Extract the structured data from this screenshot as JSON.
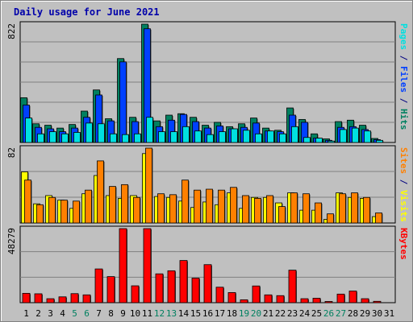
{
  "title": "Daily usage for June 2021",
  "chart_data": [
    {
      "type": "bar",
      "name": "hits-files-pages",
      "right_label_parts": [
        {
          "text": "Pages",
          "color": "#00e0e0"
        },
        {
          "text": " / ",
          "color": "#000080"
        },
        {
          "text": "Files",
          "color": "#0040ff"
        },
        {
          "text": " / ",
          "color": "#000080"
        },
        {
          "text": "Hits",
          "color": "#008060"
        }
      ],
      "ymax_label": "822",
      "ylim": [
        0,
        822
      ],
      "categories": [
        "1",
        "2",
        "3",
        "4",
        "5",
        "6",
        "7",
        "8",
        "9",
        "10",
        "11",
        "12",
        "13",
        "14",
        "15",
        "16",
        "17",
        "18",
        "19",
        "20",
        "21",
        "22",
        "23",
        "24",
        "25",
        "26",
        "27",
        "28",
        "29",
        "30",
        "31"
      ],
      "series": [
        {
          "name": "Hits",
          "color": "#008060",
          "values": [
            311,
            130,
            120,
            100,
            125,
            218,
            365,
            165,
            583,
            175,
            822,
            150,
            190,
            200,
            175,
            120,
            140,
            110,
            130,
            170,
            100,
            85,
            240,
            160,
            60,
            25,
            145,
            155,
            120,
            28,
            0
          ]
        },
        {
          "name": "Files",
          "color": "#0040ff",
          "values": [
            260,
            105,
            95,
            75,
            100,
            175,
            330,
            150,
            560,
            145,
            790,
            110,
            155,
            195,
            145,
            100,
            115,
            95,
            105,
            135,
            80,
            75,
            190,
            140,
            30,
            15,
            105,
            110,
            90,
            20,
            0
          ]
        },
        {
          "name": "Pages",
          "color": "#00e0e0",
          "values": [
            170,
            60,
            75,
            60,
            70,
            135,
            130,
            60,
            55,
            60,
            175,
            75,
            75,
            110,
            80,
            55,
            75,
            95,
            85,
            60,
            80,
            60,
            110,
            35,
            30,
            10,
            90,
            100,
            80,
            15,
            0
          ]
        }
      ]
    },
    {
      "type": "bar",
      "name": "visits-sites",
      "right_label_parts": [
        {
          "text": "Sites",
          "color": "#ff8000"
        },
        {
          "text": " / ",
          "color": "#000080"
        },
        {
          "text": "Visits",
          "color": "#ffff00"
        }
      ],
      "ymax_label": "82",
      "ylim": [
        0,
        82
      ],
      "categories": [
        "1",
        "2",
        "3",
        "4",
        "5",
        "6",
        "7",
        "8",
        "9",
        "10",
        "11",
        "12",
        "13",
        "14",
        "15",
        "16",
        "17",
        "18",
        "19",
        "20",
        "21",
        "22",
        "23",
        "24",
        "25",
        "26",
        "27",
        "28",
        "29",
        "30",
        "31"
      ],
      "series": [
        {
          "name": "Visits",
          "color": "#ffff00",
          "values": [
            56,
            21,
            30,
            25,
            16,
            32,
            52,
            30,
            27,
            30,
            76,
            29,
            28,
            24,
            17,
            23,
            20,
            33,
            16,
            28,
            28,
            22,
            33,
            14,
            14,
            4,
            33,
            28,
            27,
            7,
            0
          ]
        },
        {
          "name": "Sites",
          "color": "#ff8000",
          "values": [
            47,
            20,
            28,
            25,
            24,
            36,
            68,
            40,
            42,
            28,
            82,
            32,
            31,
            47,
            36,
            37,
            36,
            39,
            30,
            27,
            30,
            18,
            33,
            32,
            22,
            10,
            32,
            33,
            28,
            11,
            0
          ]
        }
      ]
    },
    {
      "type": "bar",
      "name": "kbytes",
      "right_label_parts": [
        {
          "text": "KBytes",
          "color": "#ff0000"
        }
      ],
      "ymax_label": "48279",
      "ylim": [
        0,
        48279
      ],
      "categories": [
        "1",
        "2",
        "3",
        "4",
        "5",
        "6",
        "7",
        "8",
        "9",
        "10",
        "11",
        "12",
        "13",
        "14",
        "15",
        "16",
        "17",
        "18",
        "19",
        "20",
        "21",
        "22",
        "23",
        "24",
        "25",
        "26",
        "27",
        "28",
        "29",
        "30",
        "31"
      ],
      "series": [
        {
          "name": "KBytes",
          "color": "#ff0000",
          "values": [
            6100,
            5800,
            2600,
            3800,
            5900,
            5100,
            22000,
            17000,
            48279,
            11000,
            48279,
            18800,
            20800,
            27500,
            16000,
            24800,
            10100,
            6600,
            1900,
            10900,
            5100,
            4600,
            21200,
            2600,
            2900,
            800,
            5600,
            7600,
            2600,
            900,
            0
          ]
        }
      ],
      "xlabels": [
        {
          "text": "1",
          "color": "#000000"
        },
        {
          "text": "2",
          "color": "#000000"
        },
        {
          "text": "3",
          "color": "#000000"
        },
        {
          "text": "4",
          "color": "#000000"
        },
        {
          "text": "5",
          "color": "#008060"
        },
        {
          "text": "6",
          "color": "#008060"
        },
        {
          "text": "7",
          "color": "#000000"
        },
        {
          "text": "8",
          "color": "#000000"
        },
        {
          "text": "9",
          "color": "#000000"
        },
        {
          "text": "10",
          "color": "#000000"
        },
        {
          "text": "11",
          "color": "#000000"
        },
        {
          "text": "12",
          "color": "#008060"
        },
        {
          "text": "13",
          "color": "#008060"
        },
        {
          "text": "14",
          "color": "#000000"
        },
        {
          "text": "15",
          "color": "#000000"
        },
        {
          "text": "16",
          "color": "#000000"
        },
        {
          "text": "17",
          "color": "#000000"
        },
        {
          "text": "18",
          "color": "#000000"
        },
        {
          "text": "19",
          "color": "#008060"
        },
        {
          "text": "20",
          "color": "#008060"
        },
        {
          "text": "21",
          "color": "#000000"
        },
        {
          "text": "22",
          "color": "#000000"
        },
        {
          "text": "23",
          "color": "#000000"
        },
        {
          "text": "24",
          "color": "#000000"
        },
        {
          "text": "25",
          "color": "#000000"
        },
        {
          "text": "26",
          "color": "#008060"
        },
        {
          "text": "27",
          "color": "#008060"
        },
        {
          "text": "28",
          "color": "#000000"
        },
        {
          "text": "29",
          "color": "#000000"
        },
        {
          "text": "30",
          "color": "#000000"
        },
        {
          "text": "31",
          "color": "#000000"
        }
      ]
    }
  ]
}
